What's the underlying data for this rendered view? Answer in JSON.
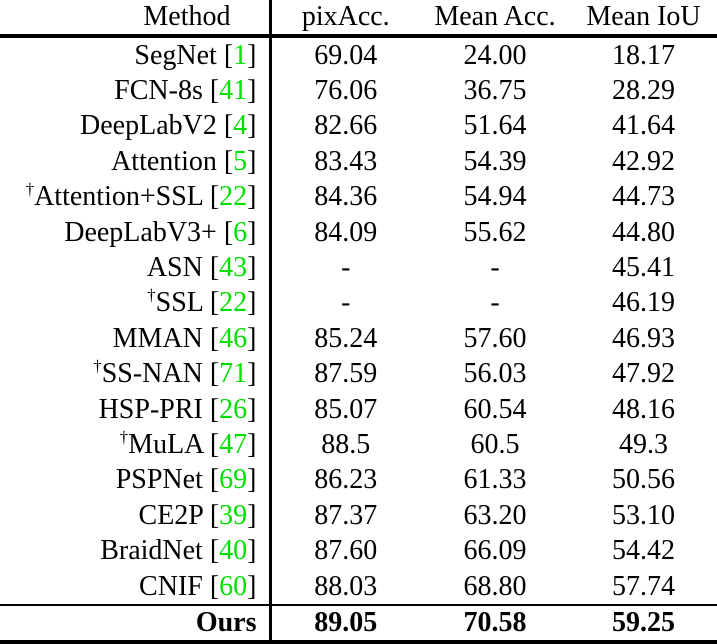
{
  "table": {
    "citation_color": "#00e000",
    "columns": [
      "Method",
      "pixAcc.",
      "Mean Acc.",
      "Mean IoU"
    ],
    "rows": [
      {
        "method": "SegNet",
        "dagger": false,
        "cite": "1",
        "pixacc": "69.04",
        "meanacc": "24.00",
        "meaniou": "18.17"
      },
      {
        "method": "FCN-8s",
        "dagger": false,
        "cite": "41",
        "pixacc": "76.06",
        "meanacc": "36.75",
        "meaniou": "28.29"
      },
      {
        "method": "DeepLabV2",
        "dagger": false,
        "cite": "4",
        "pixacc": "82.66",
        "meanacc": "51.64",
        "meaniou": "41.64"
      },
      {
        "method": "Attention",
        "dagger": false,
        "cite": "5",
        "pixacc": "83.43",
        "meanacc": "54.39",
        "meaniou": "42.92"
      },
      {
        "method": "Attention+SSL",
        "dagger": true,
        "cite": "22",
        "pixacc": "84.36",
        "meanacc": "54.94",
        "meaniou": "44.73"
      },
      {
        "method": "DeepLabV3+",
        "dagger": false,
        "cite": "6",
        "pixacc": "84.09",
        "meanacc": "55.62",
        "meaniou": "44.80"
      },
      {
        "method": "ASN",
        "dagger": false,
        "cite": "43",
        "pixacc": "-",
        "meanacc": "-",
        "meaniou": "45.41"
      },
      {
        "method": "SSL",
        "dagger": true,
        "cite": "22",
        "pixacc": "-",
        "meanacc": "-",
        "meaniou": "46.19"
      },
      {
        "method": "MMAN",
        "dagger": false,
        "cite": "46",
        "pixacc": "85.24",
        "meanacc": "57.60",
        "meaniou": "46.93"
      },
      {
        "method": "SS-NAN",
        "dagger": true,
        "cite": "71",
        "pixacc": "87.59",
        "meanacc": "56.03",
        "meaniou": "47.92"
      },
      {
        "method": "HSP-PRI",
        "dagger": false,
        "cite": "26",
        "pixacc": "85.07",
        "meanacc": "60.54",
        "meaniou": "48.16"
      },
      {
        "method": "MuLA",
        "dagger": true,
        "cite": "47",
        "pixacc": "88.5",
        "meanacc": "60.5",
        "meaniou": "49.3"
      },
      {
        "method": "PSPNet",
        "dagger": false,
        "cite": "69",
        "pixacc": "86.23",
        "meanacc": "61.33",
        "meaniou": "50.56"
      },
      {
        "method": "CE2P",
        "dagger": false,
        "cite": "39",
        "pixacc": "87.37",
        "meanacc": "63.20",
        "meaniou": "53.10"
      },
      {
        "method": "BraidNet",
        "dagger": false,
        "cite": "40",
        "pixacc": "87.60",
        "meanacc": "66.09",
        "meaniou": "54.42"
      },
      {
        "method": "CNIF",
        "dagger": false,
        "cite": "60",
        "pixacc": "88.03",
        "meanacc": "68.80",
        "meaniou": "57.74"
      }
    ],
    "footer": {
      "method": "Ours",
      "pixacc": "89.05",
      "meanacc": "70.58",
      "meaniou": "59.25"
    }
  }
}
